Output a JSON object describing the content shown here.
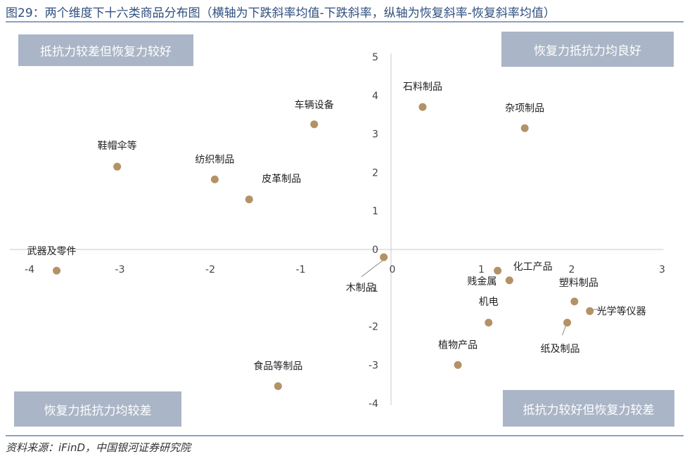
{
  "figure": {
    "title": "图29：两个维度下十六类商品分布图（横轴为下跌斜率均值-下跌斜率，纵轴为恢复斜率-恢复斜率均值）",
    "source": "资料来源：iFinD，中国银河证券研究院"
  },
  "quadrants": {
    "top_left": "抵抗力较差但恢复力较好",
    "top_right": "恢复力抵抗力均良好",
    "bottom_left": "恢复力抵抗力均较差",
    "bottom_right": "抵抗力较好但恢复力较差"
  },
  "colors": {
    "point": "#b39266",
    "axis": "#c8c8c8",
    "frame": "#8da0bf",
    "box": "#aab5c7"
  },
  "chart_data": {
    "type": "scatter",
    "xlim": [
      -4,
      3
    ],
    "ylim": [
      -4,
      5
    ],
    "x_ticks": [
      "-4",
      "-3",
      "-2",
      "-1",
      "0",
      "1",
      "2",
      "3"
    ],
    "y_ticks": [
      "5",
      "4",
      "3",
      "2",
      "1",
      "0",
      "-1",
      "-2",
      "-3",
      "-4"
    ],
    "grid": false,
    "points": [
      {
        "label": "石料制品",
        "x": 0.35,
        "y": 3.7
      },
      {
        "label": "杂项制品",
        "x": 1.48,
        "y": 3.15
      },
      {
        "label": "车辆设备",
        "x": -0.85,
        "y": 3.25
      },
      {
        "label": "鞋帽伞等",
        "x": -3.03,
        "y": 2.15
      },
      {
        "label": "纺织制品",
        "x": -1.95,
        "y": 1.82
      },
      {
        "label": "皮革制品",
        "x": -1.57,
        "y": 1.3
      },
      {
        "label": "武器及零件",
        "x": -3.7,
        "y": -0.55
      },
      {
        "label": "木制品",
        "x": -0.08,
        "y": -0.2
      },
      {
        "label": "化工产品",
        "x": 1.18,
        "y": -0.55
      },
      {
        "label": "贱金属",
        "x": 1.31,
        "y": -0.8
      },
      {
        "label": "塑料制品",
        "x": 2.03,
        "y": -1.35
      },
      {
        "label": "光学等仪器",
        "x": 2.2,
        "y": -1.6
      },
      {
        "label": "机电",
        "x": 1.08,
        "y": -1.9
      },
      {
        "label": "纸及制品",
        "x": 1.95,
        "y": -1.9
      },
      {
        "label": "植物产品",
        "x": 0.74,
        "y": -3.0
      },
      {
        "label": "食品等制品",
        "x": -1.25,
        "y": -3.55
      }
    ]
  }
}
